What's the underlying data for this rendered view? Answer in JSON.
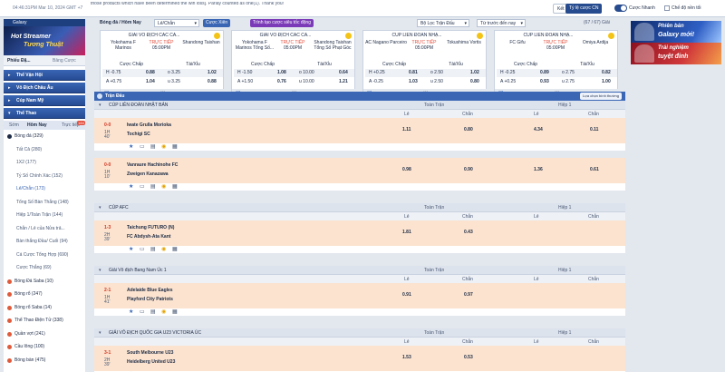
{
  "topbar": {
    "timestamp": "04:46:31PM Mar 10, 2024 GMT +7",
    "announcement": "those products which have been determined the win loss]. Parlay counted as one(1). Thank you!",
    "btn_ketqua": "Kết Quả",
    "btn_oddsformat": "Tỷ lệ cược CN",
    "quick_label": "Cược Nhanh",
    "newodds_label": "Chế độ nền tối"
  },
  "sidebar": {
    "brand": "Galaxy",
    "promo_title": "Hot Streamer",
    "promo_sub": "Tương Thuật",
    "tabs": [
      "Phiếu Đặ...",
      "Bảng Cược"
    ],
    "categories": [
      "Thể Vận Hội",
      "Vô Địch Châu Âu",
      "Cúp Nam Mỹ",
      "Thể Thao"
    ],
    "sub_tabs": [
      "Sớm",
      "Hôm Nay",
      "Trực tiếp"
    ],
    "sports": [
      {
        "label": "Bóng đá (329)",
        "type": "parent first"
      },
      {
        "label": "Tất Cả (280)",
        "type": "child"
      },
      {
        "label": "1X2 (177)",
        "type": "child"
      },
      {
        "label": "Tỷ Số Chính Xác (152)",
        "type": "child"
      },
      {
        "label": "Lẻ/Chẵn (173)",
        "type": "child active"
      },
      {
        "label": "Tổng Số Bàn Thắng (148)",
        "type": "child"
      },
      {
        "label": "Hiệp 1/Toàn Trận (144)",
        "type": "child"
      },
      {
        "label": "Chẵn / Lẻ của Nửa trả...",
        "type": "child"
      },
      {
        "label": "Bàn thắng Đầu/ Cuối (94)",
        "type": "child"
      },
      {
        "label": "Cá Cược Tổng Hợp (690)",
        "type": "child"
      },
      {
        "label": "Cược Thắng (69)",
        "type": "child"
      },
      {
        "label": "Bóng Đá Saba (10)",
        "type": "parent"
      },
      {
        "label": "Bóng rổ (247)",
        "type": "parent"
      },
      {
        "label": "Bóng rổ Saba (14)",
        "type": "parent"
      },
      {
        "label": "Thể Thao Điện Tử (338)",
        "type": "parent"
      },
      {
        "label": "Quần vợt (241)",
        "type": "parent"
      },
      {
        "label": "Cầu lông (100)",
        "type": "parent"
      },
      {
        "label": "Bóng bàn (475)",
        "type": "parent"
      }
    ]
  },
  "main": {
    "breadcrumb": "Bóng đá / Hôm Nay",
    "sel_time": "Lẻ/Chẵn",
    "btn_xien": "Cược Xiên",
    "btn_builder": "Trình tạo cược siêu tốc động",
    "sel_league": "Bộ Lọc Trận Đấu",
    "sel_order": "Từ trước đến nay",
    "match_count": "(67 / 67) Giải",
    "cards": [
      {
        "league": "GIẢI VÔ ĐỊCH CÁC CÂ...",
        "home": "Yokohama F Marinos",
        "live": "TRỰC TIẾP",
        "time": "05:00PM",
        "away": "Shandong Taishan",
        "rows": [
          [
            "H -0.75",
            "0.88",
            "o 3.25",
            "1.02"
          ],
          [
            "A +0.75",
            "1.04",
            "u 3.25",
            "0.88"
          ]
        ]
      },
      {
        "league": "GIẢI VÔ ĐỊCH CÁC CÂ...",
        "home": "Yokohama F Marinos Tổng Số...",
        "live": "TRỰC TIẾP",
        "time": "05:00PM",
        "away": "Shandong Taishan Tổng Số Phạt Góc",
        "rows": [
          [
            "H -1.50",
            "1.08",
            "o 10.00",
            "0.64"
          ],
          [
            "A +1.50",
            "0.76",
            "u 10.00",
            "1.21"
          ]
        ]
      },
      {
        "league": "CÚP LIÊN ĐOÀN NHẬ...",
        "home": "AC Nagano Parceiro",
        "live": "TRỰC TIẾP",
        "time": "05:00PM",
        "away": "Tokushima Vortis",
        "rows": [
          [
            "H +0.25",
            "0.81",
            "o 2.50",
            "1.02"
          ],
          [
            "A -0.25",
            "1.03",
            "u 2.50",
            "0.80"
          ]
        ]
      },
      {
        "league": "CÚP LIÊN ĐOÀN NHẬ...",
        "home": "FC Gifu",
        "live": "TRỰC TIẾP",
        "time": "05:00PM",
        "away": "Omiya Ardija",
        "rows": [
          [
            "H -0.25",
            "0.89",
            "o 2.75",
            "0.82"
          ],
          [
            "A +0.25",
            "0.93",
            "u 2.75",
            "1.00"
          ]
        ]
      }
    ],
    "card_headers": [
      "Cược Chấp",
      "Tài/Xỉu"
    ],
    "live_label": "Trận Đấu",
    "btn_choose_league": "Lựa chọn bình thường",
    "fulltime_label": "Toàn Trận",
    "half1_label": "Hiệp 1",
    "col_le": "Lẻ",
    "col_chan": "Chẵn",
    "leagues": [
      {
        "name": "CÚP LIÊN ĐOÀN NHẬT BẢN",
        "matches": [
          {
            "score": "0-0",
            "period": "1H 40'",
            "home": "Iwate Grulla Morioka",
            "away": "Tochigi SC",
            "odds": [
              "1.11",
              "0.80",
              "4.34",
              "0.11"
            ]
          },
          {
            "score": "0-0",
            "period": "1H 10'",
            "home": "Vanraure Hachinohe FC",
            "away": "Zweigen Kanazawa",
            "odds": [
              "0.98",
              "0.90",
              "1.36",
              "0.61"
            ]
          }
        ]
      },
      {
        "name": "CÚP AFC",
        "matches": [
          {
            "score": "1-3",
            "period": "2H 39'",
            "home": "Taichung FUTURO (N)",
            "away": "FC Abdysh-Ata Kant",
            "odds": [
              "1.81",
              "0.43",
              "",
              ""
            ]
          }
        ]
      },
      {
        "name": "Giải Vô địch Bang Nam Úc 1",
        "matches": [
          {
            "score": "2-1",
            "period": "1H 41'",
            "home": "Adelaide Blue Eagles",
            "away": "Playford City Patriots",
            "odds": [
              "0.91",
              "0.97",
              "",
              ""
            ]
          }
        ]
      },
      {
        "name": "GIẢI VÔ ĐỊCH QUỐC GIA U23 VICTORIA ÚC",
        "matches": [
          {
            "score": "3-1",
            "period": "2H 39'",
            "home": "South Melbourne U23",
            "away": "Heidelberg United U23",
            "odds": [
              "1.53",
              "0.53",
              "",
              ""
            ]
          }
        ]
      }
    ]
  },
  "right": {
    "promo1_title": "Phiên bản",
    "promo1_sub": "Galaxy mới!",
    "promo2_title": "Trải nghiệm",
    "promo2_sub": "tuyệt đỉnh"
  }
}
